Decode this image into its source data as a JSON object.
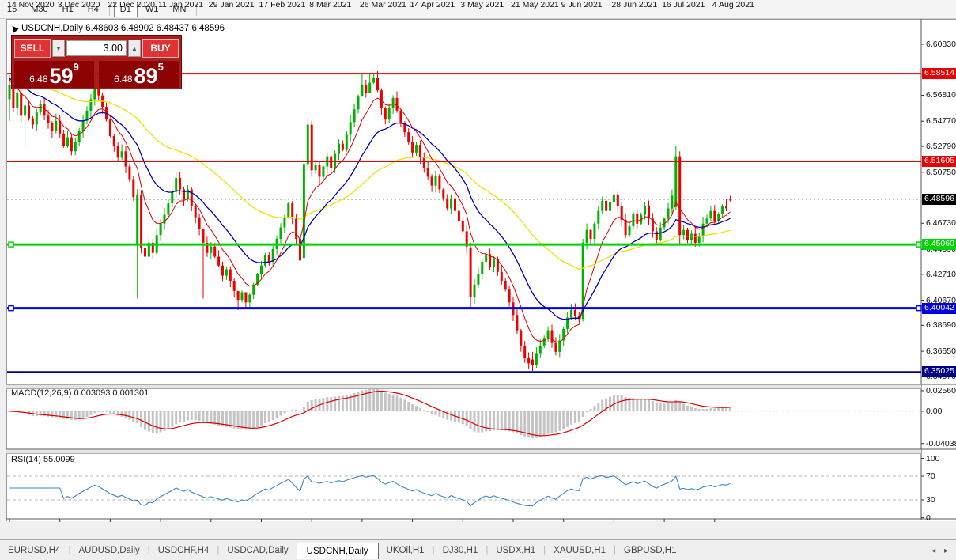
{
  "toolbar": {
    "timeframes": [
      "15",
      "M30",
      "H1",
      "H4",
      "D1",
      "W1",
      "MN"
    ],
    "active": "D1"
  },
  "title_line": "USDCNH,Daily  6.48603 6.48902 6.48437 6.48596",
  "trade_panel": {
    "sell_label": "SELL",
    "buy_label": "BUY",
    "volume": "3.00",
    "spin_down_icon": "▼",
    "spin_up_icon": "▲",
    "sell_price": {
      "prefix": "6.48",
      "big": "59",
      "sup": "9"
    },
    "buy_price": {
      "prefix": "6.48",
      "big": "89",
      "sup": "5"
    }
  },
  "tabs": {
    "items": [
      "EURUSD,H4",
      "AUDUSD,Daily",
      "USDCHF,H4",
      "USDCAD,Daily",
      "USDCNH,Daily",
      "UKOil,H1",
      "DJ30,H1",
      "USDX,H1",
      "XAUUSD,H1",
      "GBPUSD,H1"
    ],
    "active_index": 4,
    "scroll_icons": "◂ ▸"
  },
  "chart_data": {
    "type": "candlestick",
    "symbol": "USDCNH",
    "timeframe": "Daily",
    "ohlc_current": {
      "open": 6.48603,
      "high": 6.48902,
      "low": 6.48437,
      "close": 6.48596
    },
    "current_price": 6.48596,
    "price_axis": {
      "max": 6.6257,
      "min": 6.3404,
      "ticks": [
        6.6083,
        6.5681,
        6.5477,
        6.5279,
        6.5075,
        6.4673,
        6.4469,
        6.4271,
        6.4067,
        6.3869,
        6.3665,
        6.3467
      ]
    },
    "levels": [
      {
        "value": 6.58514,
        "label": "6.58514",
        "color": "#e80000",
        "width": 2,
        "handles": false
      },
      {
        "value": 6.51605,
        "label": "6.51605",
        "color": "#e80000",
        "width": 2,
        "handles": false
      },
      {
        "value": 6.4506,
        "label": "6.45060",
        "color": "#00d400",
        "width": 3,
        "handles": true
      },
      {
        "value": 6.40042,
        "label": "6.40042",
        "color": "#0000e0",
        "width": 3,
        "handles": true
      },
      {
        "value": 6.35025,
        "label": "6.35025",
        "color": "#000088",
        "width": 2,
        "handles": false
      }
    ],
    "date_labels": [
      "14 Nov 2020",
      "3 Dec 2020",
      "22 Dec 2020",
      "11 Jan 2021",
      "29 Jan 2021",
      "17 Feb 2021",
      "8 Mar 2021",
      "26 Mar 2021",
      "14 Apr 2021",
      "3 May 2021",
      "21 May 2021",
      "9 Jun 2021",
      "28 Jun 2021",
      "16 Jul 2021",
      "4 Aug 2021"
    ],
    "colors": {
      "up": "#00b200",
      "down": "#ee0000",
      "ma_fast": "#dd0000",
      "ma_mid": "#0000bb",
      "ma_slow": "#f0e000",
      "macd_hist": "#c4c4c4",
      "macd_signal": "#dd0000",
      "rsi_line": "#3a87c8",
      "grid_dash": "#b8b8b8",
      "bid_line": "#bbbbbb"
    },
    "ma": [
      {
        "name": "ma-fast",
        "period": 8
      },
      {
        "name": "ma-mid",
        "period": 20
      },
      {
        "name": "ma-slow",
        "period": 55
      }
    ],
    "closes": [
      6.576,
      6.558,
      6.57,
      6.552,
      6.56,
      6.55,
      6.545,
      6.555,
      6.561,
      6.552,
      6.546,
      6.54,
      6.548,
      6.538,
      6.528,
      6.535,
      6.524,
      6.531,
      6.54,
      6.548,
      6.556,
      6.565,
      6.574,
      6.568,
      6.559,
      6.549,
      6.536,
      6.528,
      6.519,
      6.524,
      6.512,
      6.502,
      6.488,
      6.49,
      6.448,
      6.441,
      6.452,
      6.444,
      6.458,
      6.467,
      6.474,
      6.483,
      6.492,
      6.503,
      6.494,
      6.486,
      6.494,
      6.481,
      6.472,
      6.463,
      6.452,
      6.444,
      6.449,
      6.441,
      6.434,
      6.426,
      6.431,
      6.422,
      6.414,
      6.407,
      6.413,
      6.405,
      6.411,
      6.419,
      6.427,
      6.434,
      6.442,
      6.437,
      6.447,
      6.455,
      6.464,
      6.472,
      6.483,
      6.471,
      6.455,
      6.438,
      6.514,
      6.545,
      6.509,
      6.513,
      6.504,
      6.512,
      6.52,
      6.511,
      6.522,
      6.53,
      6.525,
      6.537,
      6.547,
      6.557,
      6.567,
      6.576,
      6.57,
      6.578,
      6.582,
      6.572,
      6.558,
      6.549,
      6.558,
      6.566,
      6.556,
      6.546,
      6.539,
      6.531,
      6.523,
      6.529,
      6.519,
      6.511,
      6.504,
      6.497,
      6.505,
      6.494,
      6.487,
      6.479,
      6.487,
      6.477,
      6.469,
      6.461,
      6.449,
      6.409,
      6.419,
      6.427,
      6.437,
      6.443,
      6.433,
      6.439,
      6.429,
      6.422,
      6.415,
      6.405,
      6.395,
      6.383,
      6.371,
      6.361,
      6.357,
      6.356,
      6.365,
      6.371,
      6.377,
      6.383,
      6.373,
      6.366,
      6.375,
      6.384,
      6.393,
      6.399,
      6.394,
      6.392,
      6.452,
      6.462,
      6.455,
      6.467,
      6.477,
      6.485,
      6.477,
      6.484,
      6.49,
      6.481,
      6.47,
      6.458,
      6.465,
      6.475,
      6.467,
      6.474,
      6.481,
      6.471,
      6.461,
      6.454,
      6.464,
      6.471,
      6.479,
      6.489,
      6.52,
      6.458,
      6.462,
      6.454,
      6.459,
      6.452,
      6.457,
      6.467,
      6.471,
      6.477,
      6.469,
      6.475,
      6.481,
      6.479,
      6.486
    ],
    "ohlc_overrides": {
      "33": [
        6.45,
        6.494,
        6.408,
        6.49
      ],
      "76": [
        6.44,
        6.518,
        6.436,
        6.514
      ],
      "77": [
        6.514,
        6.55,
        6.51,
        6.545
      ],
      "78": [
        6.545,
        6.548,
        6.504,
        6.509
      ],
      "119": [
        6.448,
        6.452,
        6.401,
        6.409
      ],
      "135": [
        6.36,
        6.366,
        6.351,
        6.356
      ],
      "148": [
        6.392,
        6.455,
        6.39,
        6.452
      ],
      "172": [
        6.48,
        6.528,
        6.478,
        6.52
      ],
      "173": [
        6.52,
        6.524,
        6.45,
        6.458
      ],
      "186": [
        6.486,
        6.489,
        6.4844,
        6.48596
      ]
    },
    "wick_overrides": {
      "0": [
        6.584,
        6.548
      ],
      "2": [
        6.585,
        6.552
      ],
      "4": [
        6.578,
        6.527
      ],
      "22": [
        6.581,
        6.56
      ],
      "50": [
        6.456,
        6.408
      ],
      "59": [
        6.411,
        6.399
      ],
      "61": [
        6.409,
        6.4
      ],
      "91": [
        6.585,
        6.571
      ],
      "93": [
        6.586,
        6.574
      ],
      "94": [
        6.585,
        6.577
      ]
    },
    "macd": {
      "label": "MACD(12,26,9) 0.003093 0.001301",
      "params": [
        12,
        26,
        9
      ],
      "axis": {
        "max": 0.0295,
        "min": -0.0475
      },
      "ticks": [
        {
          "label": "0.025609",
          "value": 0.025609
        },
        {
          "label": "0.00",
          "value": 0
        },
        {
          "label": "-0.04038",
          "value": -0.04038
        }
      ]
    },
    "rsi": {
      "label": "RSI(14) 55.0099",
      "period": 14,
      "value": 55.0099,
      "ticks": [
        {
          "label": "100",
          "value": 100
        },
        {
          "label": "70",
          "value": 70
        },
        {
          "label": "30",
          "value": 30
        },
        {
          "label": "0",
          "value": 0
        }
      ],
      "dashed_levels": [
        70,
        30
      ]
    }
  }
}
